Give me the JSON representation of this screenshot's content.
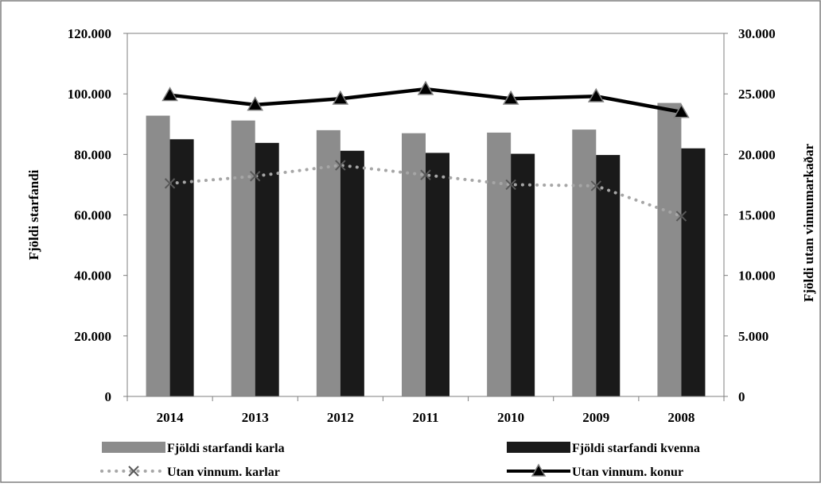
{
  "chart_data": {
    "type": "bar",
    "categories": [
      "2014",
      "2013",
      "2012",
      "2011",
      "2010",
      "2009",
      "2008"
    ],
    "ylabel": "Fjöldi starfandi",
    "y2label": "Fjöldi utan vinnumarkaðar",
    "ylim": [
      0,
      120000
    ],
    "y2lim": [
      0,
      30000
    ],
    "yticks": [
      "0",
      "20.000",
      "40.000",
      "60.000",
      "80.000",
      "100.000",
      "120.000"
    ],
    "y2ticks": [
      "0",
      "5.000",
      "10.000",
      "15.000",
      "20.000",
      "25.000",
      "30.000"
    ],
    "grid": false,
    "legend_position": "bottom",
    "series": [
      {
        "name": "Fjöldi starfandi karla",
        "type": "bar",
        "axis": "left",
        "color": "#8c8c8c",
        "values": [
          92800,
          91200,
          88000,
          87000,
          87200,
          88200,
          97000
        ]
      },
      {
        "name": "Fjöldi starfandi kvenna",
        "type": "bar",
        "axis": "left",
        "color": "#1a1a1a",
        "values": [
          85000,
          83800,
          81200,
          80500,
          80200,
          79800,
          82000
        ]
      },
      {
        "name": "Utan vinnum. karlar",
        "type": "line",
        "axis": "right",
        "color": "#a6a6a6",
        "marker": "x",
        "dash": "dotted",
        "values": [
          17600,
          18200,
          19100,
          18300,
          17500,
          17400,
          14900
        ]
      },
      {
        "name": "Utan vinnum. konur",
        "type": "line",
        "axis": "right",
        "color": "#000000",
        "marker": "triangle",
        "dash": "solid",
        "values": [
          24900,
          24100,
          24600,
          25400,
          24600,
          24800,
          23500
        ]
      }
    ]
  }
}
